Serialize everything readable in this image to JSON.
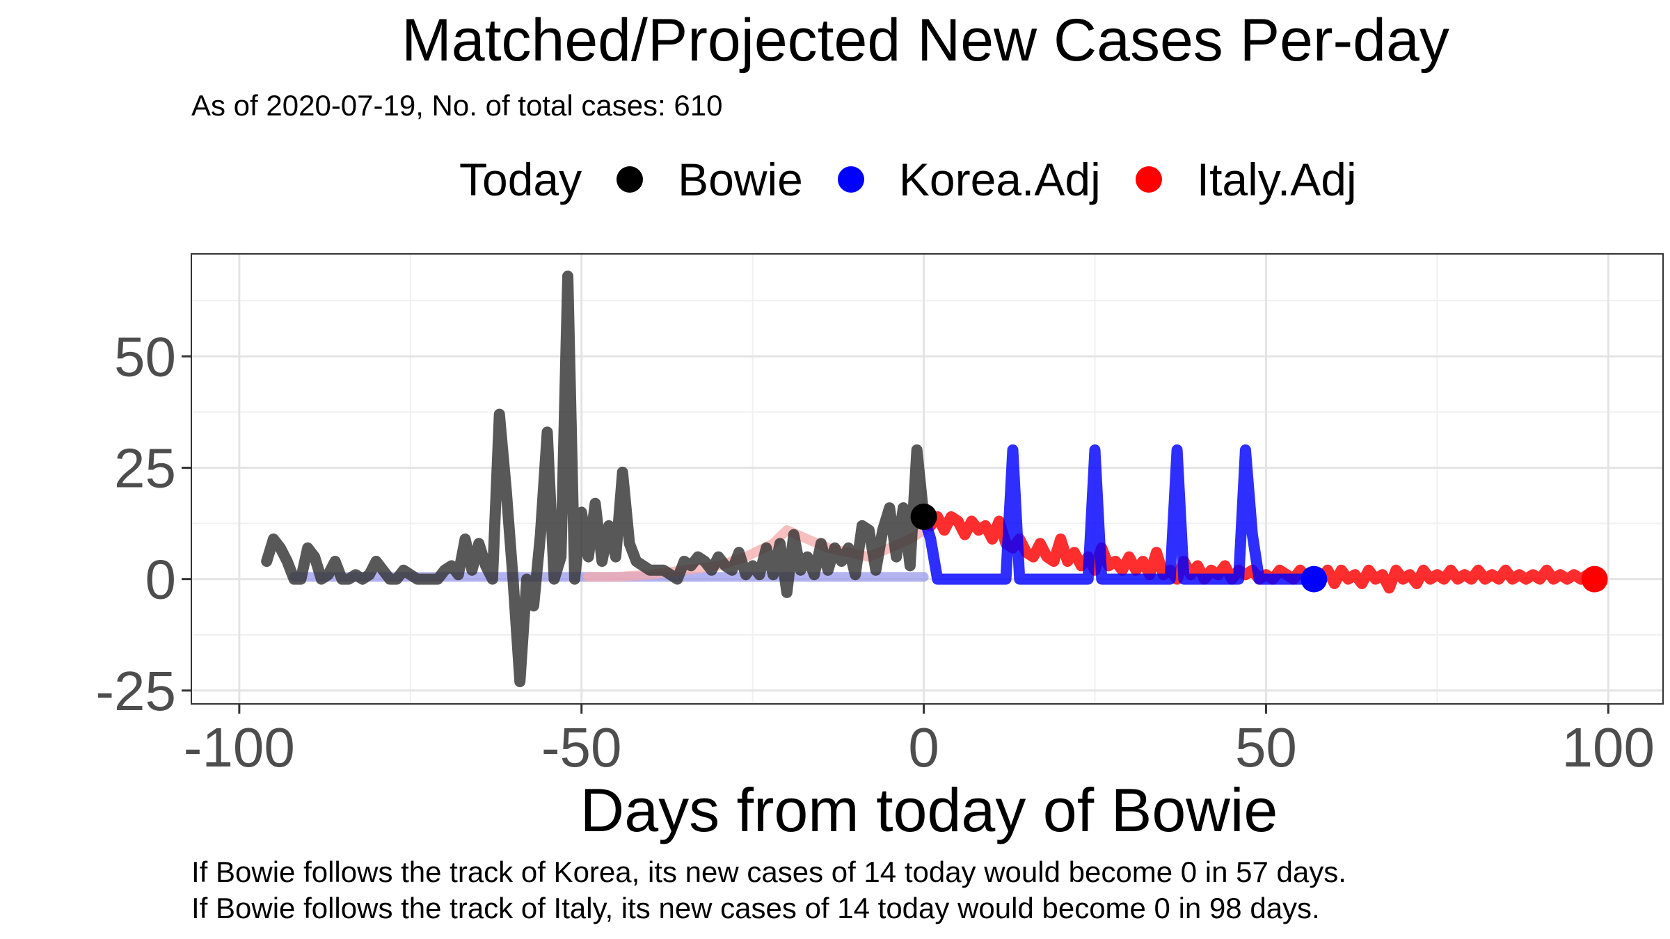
{
  "chart_data": {
    "type": "line",
    "title": "Matched/Projected New Cases Per-day",
    "subtitle": "As of 2020-07-19, No. of total cases: 610",
    "xlabel": "Days from today of Bowie",
    "ylabel": "",
    "xlim": [
      -107,
      108
    ],
    "ylim": [
      -28,
      73
    ],
    "xticks": [
      -100,
      -50,
      0,
      50,
      100
    ],
    "xtick_labels": [
      "-100",
      "-50",
      "0",
      "50",
      "100"
    ],
    "yticks": [
      -25,
      0,
      25,
      50
    ],
    "ytick_labels": [
      "-25",
      "0",
      "25",
      "50"
    ],
    "grid": true,
    "legend": {
      "title": "Today",
      "position": "top",
      "items": [
        {
          "label": "Bowie",
          "color": "#000000"
        },
        {
          "label": "Korea.Adj",
          "color": "#0000ff"
        },
        {
          "label": "Italy.Adj",
          "color": "#ff0000"
        }
      ]
    },
    "series": [
      {
        "name": "Bowie",
        "color": "#333333",
        "role": "observed",
        "x": [
          -96,
          -95,
          -94,
          -93,
          -92,
          -91,
          -90,
          -89,
          -88,
          -87,
          -86,
          -85,
          -84,
          -83,
          -82,
          -81,
          -80,
          -79,
          -78,
          -77,
          -76,
          -75,
          -74,
          -73,
          -72,
          -71,
          -70,
          -69,
          -68,
          -67,
          -66,
          -65,
          -64,
          -63,
          -62,
          -61,
          -60,
          -59,
          -58,
          -57,
          -56,
          -55,
          -54,
          -53,
          -52,
          -51,
          -50,
          -49,
          -48,
          -47,
          -46,
          -45,
          -44,
          -43,
          -42,
          -41,
          -40,
          -39,
          -38,
          -37,
          -36,
          -35,
          -34,
          -33,
          -32,
          -31,
          -30,
          -29,
          -28,
          -27,
          -26,
          -25,
          -24,
          -23,
          -22,
          -21,
          -20,
          -19,
          -18,
          -17,
          -16,
          -15,
          -14,
          -13,
          -12,
          -11,
          -10,
          -9,
          -8,
          -7,
          -6,
          -5,
          -4,
          -3,
          -2,
          -1,
          0
        ],
        "y": [
          4,
          9,
          7,
          4,
          0,
          0,
          7,
          5,
          0,
          1,
          4,
          0,
          0,
          1,
          0,
          1,
          4,
          2,
          0,
          0,
          2,
          1,
          0,
          0,
          0,
          0,
          2,
          3,
          1,
          9,
          2,
          8,
          3,
          0,
          37,
          20,
          0,
          -23,
          0,
          -6,
          10,
          33,
          0,
          5,
          68,
          0,
          15,
          5,
          17,
          4,
          12,
          5,
          24,
          8,
          4,
          3,
          2,
          2,
          2,
          1,
          0,
          4,
          3,
          5,
          4,
          2,
          5,
          3,
          2,
          6,
          1,
          3,
          1,
          7,
          1,
          8,
          -3,
          10,
          2,
          5,
          1,
          8,
          2,
          7,
          4,
          7,
          1,
          12,
          11,
          2,
          11,
          16,
          5,
          16,
          3,
          29,
          14
        ]
      },
      {
        "name": "Korea.Adj",
        "color": "#9999ee",
        "role": "matched",
        "x": [
          -92,
          0
        ],
        "y": [
          0.5,
          0.5
        ]
      },
      {
        "name": "Korea.Adj",
        "color": "#0000ff",
        "role": "projected",
        "x": [
          0,
          1,
          2,
          3,
          4,
          5,
          6,
          7,
          8,
          9,
          10,
          11,
          12,
          13,
          14,
          15,
          16,
          17,
          18,
          19,
          20,
          21,
          22,
          23,
          24,
          25,
          26,
          27,
          28,
          29,
          30,
          31,
          32,
          33,
          34,
          35,
          36,
          37,
          38,
          39,
          40,
          41,
          42,
          43,
          44,
          45,
          46,
          47,
          48,
          49,
          50,
          51,
          52,
          53,
          54,
          55,
          56,
          57
        ],
        "y": [
          14,
          9,
          0,
          0,
          0,
          0,
          0,
          0,
          0,
          0,
          0,
          0,
          0,
          29,
          0,
          0,
          0,
          0,
          0,
          0,
          0,
          0,
          0,
          0,
          0,
          29,
          0,
          0,
          0,
          0,
          0,
          0,
          0,
          0,
          0,
          0,
          0,
          29,
          0,
          0,
          0,
          0,
          0,
          0,
          0,
          0,
          0,
          29,
          10,
          0,
          0,
          0,
          0,
          0,
          0,
          0,
          0,
          0
        ]
      },
      {
        "name": "Italy.Adj",
        "color": "#f4a9a9",
        "role": "matched",
        "x": [
          -49,
          -45,
          -40,
          -35,
          -30,
          -26,
          -22,
          -20,
          -17,
          -14,
          -11,
          -8,
          -5,
          -2,
          0
        ],
        "y": [
          0.5,
          0.5,
          1,
          2,
          3,
          5,
          8,
          11,
          9,
          7,
          6,
          5,
          7,
          9,
          11
        ]
      },
      {
        "name": "Italy.Adj",
        "color": "#ff0000",
        "role": "projected",
        "x": [
          0,
          1,
          2,
          3,
          4,
          5,
          6,
          7,
          8,
          9,
          10,
          11,
          12,
          13,
          14,
          15,
          16,
          17,
          18,
          19,
          20,
          21,
          22,
          23,
          24,
          25,
          26,
          27,
          28,
          29,
          30,
          31,
          32,
          33,
          34,
          35,
          36,
          37,
          38,
          39,
          40,
          41,
          42,
          43,
          44,
          45,
          46,
          47,
          48,
          49,
          50,
          51,
          52,
          53,
          54,
          55,
          56,
          57,
          58,
          59,
          60,
          61,
          62,
          63,
          64,
          65,
          66,
          67,
          68,
          69,
          70,
          71,
          72,
          73,
          74,
          75,
          76,
          77,
          78,
          79,
          80,
          81,
          82,
          83,
          84,
          85,
          86,
          87,
          88,
          89,
          90,
          91,
          92,
          93,
          94,
          95,
          96,
          97,
          98
        ],
        "y": [
          14,
          12,
          14,
          11,
          14,
          13,
          10,
          13,
          11,
          12,
          9,
          13,
          8,
          7,
          9,
          6,
          5,
          8,
          5,
          4,
          9,
          4,
          6,
          3,
          5,
          2,
          7,
          3,
          4,
          2,
          5,
          2,
          4,
          1,
          6,
          1,
          2,
          0,
          4,
          1,
          3,
          0,
          2,
          1,
          3,
          0,
          2,
          1,
          2,
          0,
          1,
          0,
          2,
          1,
          0,
          2,
          0,
          1,
          0,
          2,
          -1,
          2,
          0,
          1,
          -1,
          2,
          0,
          1,
          -2,
          2,
          0,
          1,
          -1,
          2,
          0,
          1,
          0,
          2,
          0,
          1,
          0,
          2,
          0,
          1,
          0,
          2,
          0,
          1,
          0,
          1,
          0,
          2,
          0,
          1,
          0,
          1,
          0,
          1,
          0
        ]
      }
    ],
    "today_points": [
      {
        "name": "Bowie",
        "x": 0,
        "y": 14,
        "color": "#000000"
      },
      {
        "name": "Korea.Adj",
        "x": 57,
        "y": 0,
        "color": "#0000ff"
      },
      {
        "name": "Italy.Adj",
        "x": 98,
        "y": 0,
        "color": "#ff0000"
      }
    ],
    "annotations": [
      "If Bowie follows the track of Korea, its new cases of 14 today would become 0 in 57 days.",
      "If Bowie follows the track of Italy, its new cases of 14 today would become 0 in 98 days."
    ]
  }
}
